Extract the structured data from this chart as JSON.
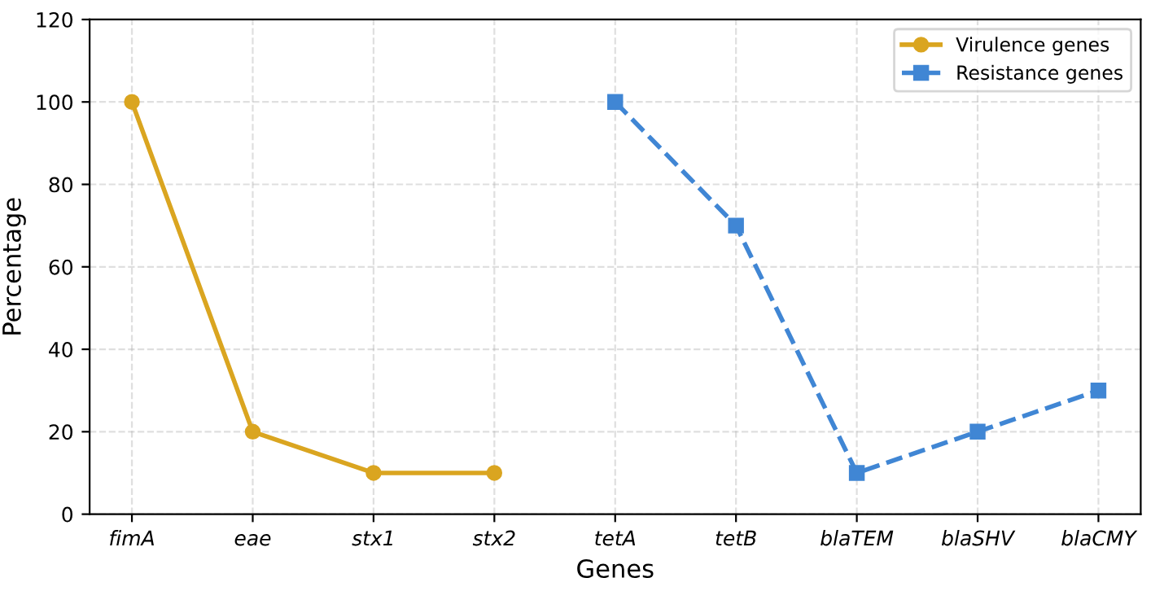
{
  "chart_data": {
    "type": "line",
    "xlabel": "Genes",
    "ylabel": "Percentage",
    "categories": [
      "fimA",
      "eae",
      "stx1",
      "stx2",
      "tetA",
      "tetB",
      "blaTEM",
      "blaSHV",
      "blaCMY"
    ],
    "series": [
      {
        "name": "Virulence genes",
        "color": "#daa520",
        "marker": "circle",
        "line_style": "solid",
        "values": [
          100,
          20,
          10,
          10,
          null,
          null,
          null,
          null,
          null
        ]
      },
      {
        "name": "Resistance genes",
        "color": "#4086d4",
        "marker": "square",
        "line_style": "dashed",
        "values": [
          null,
          null,
          null,
          null,
          100,
          70,
          10,
          20,
          30
        ]
      }
    ],
    "ylim": [
      0,
      120
    ],
    "yticks": [
      0,
      20,
      40,
      60,
      80,
      100,
      120
    ],
    "grid": true,
    "legend": "top right"
  }
}
